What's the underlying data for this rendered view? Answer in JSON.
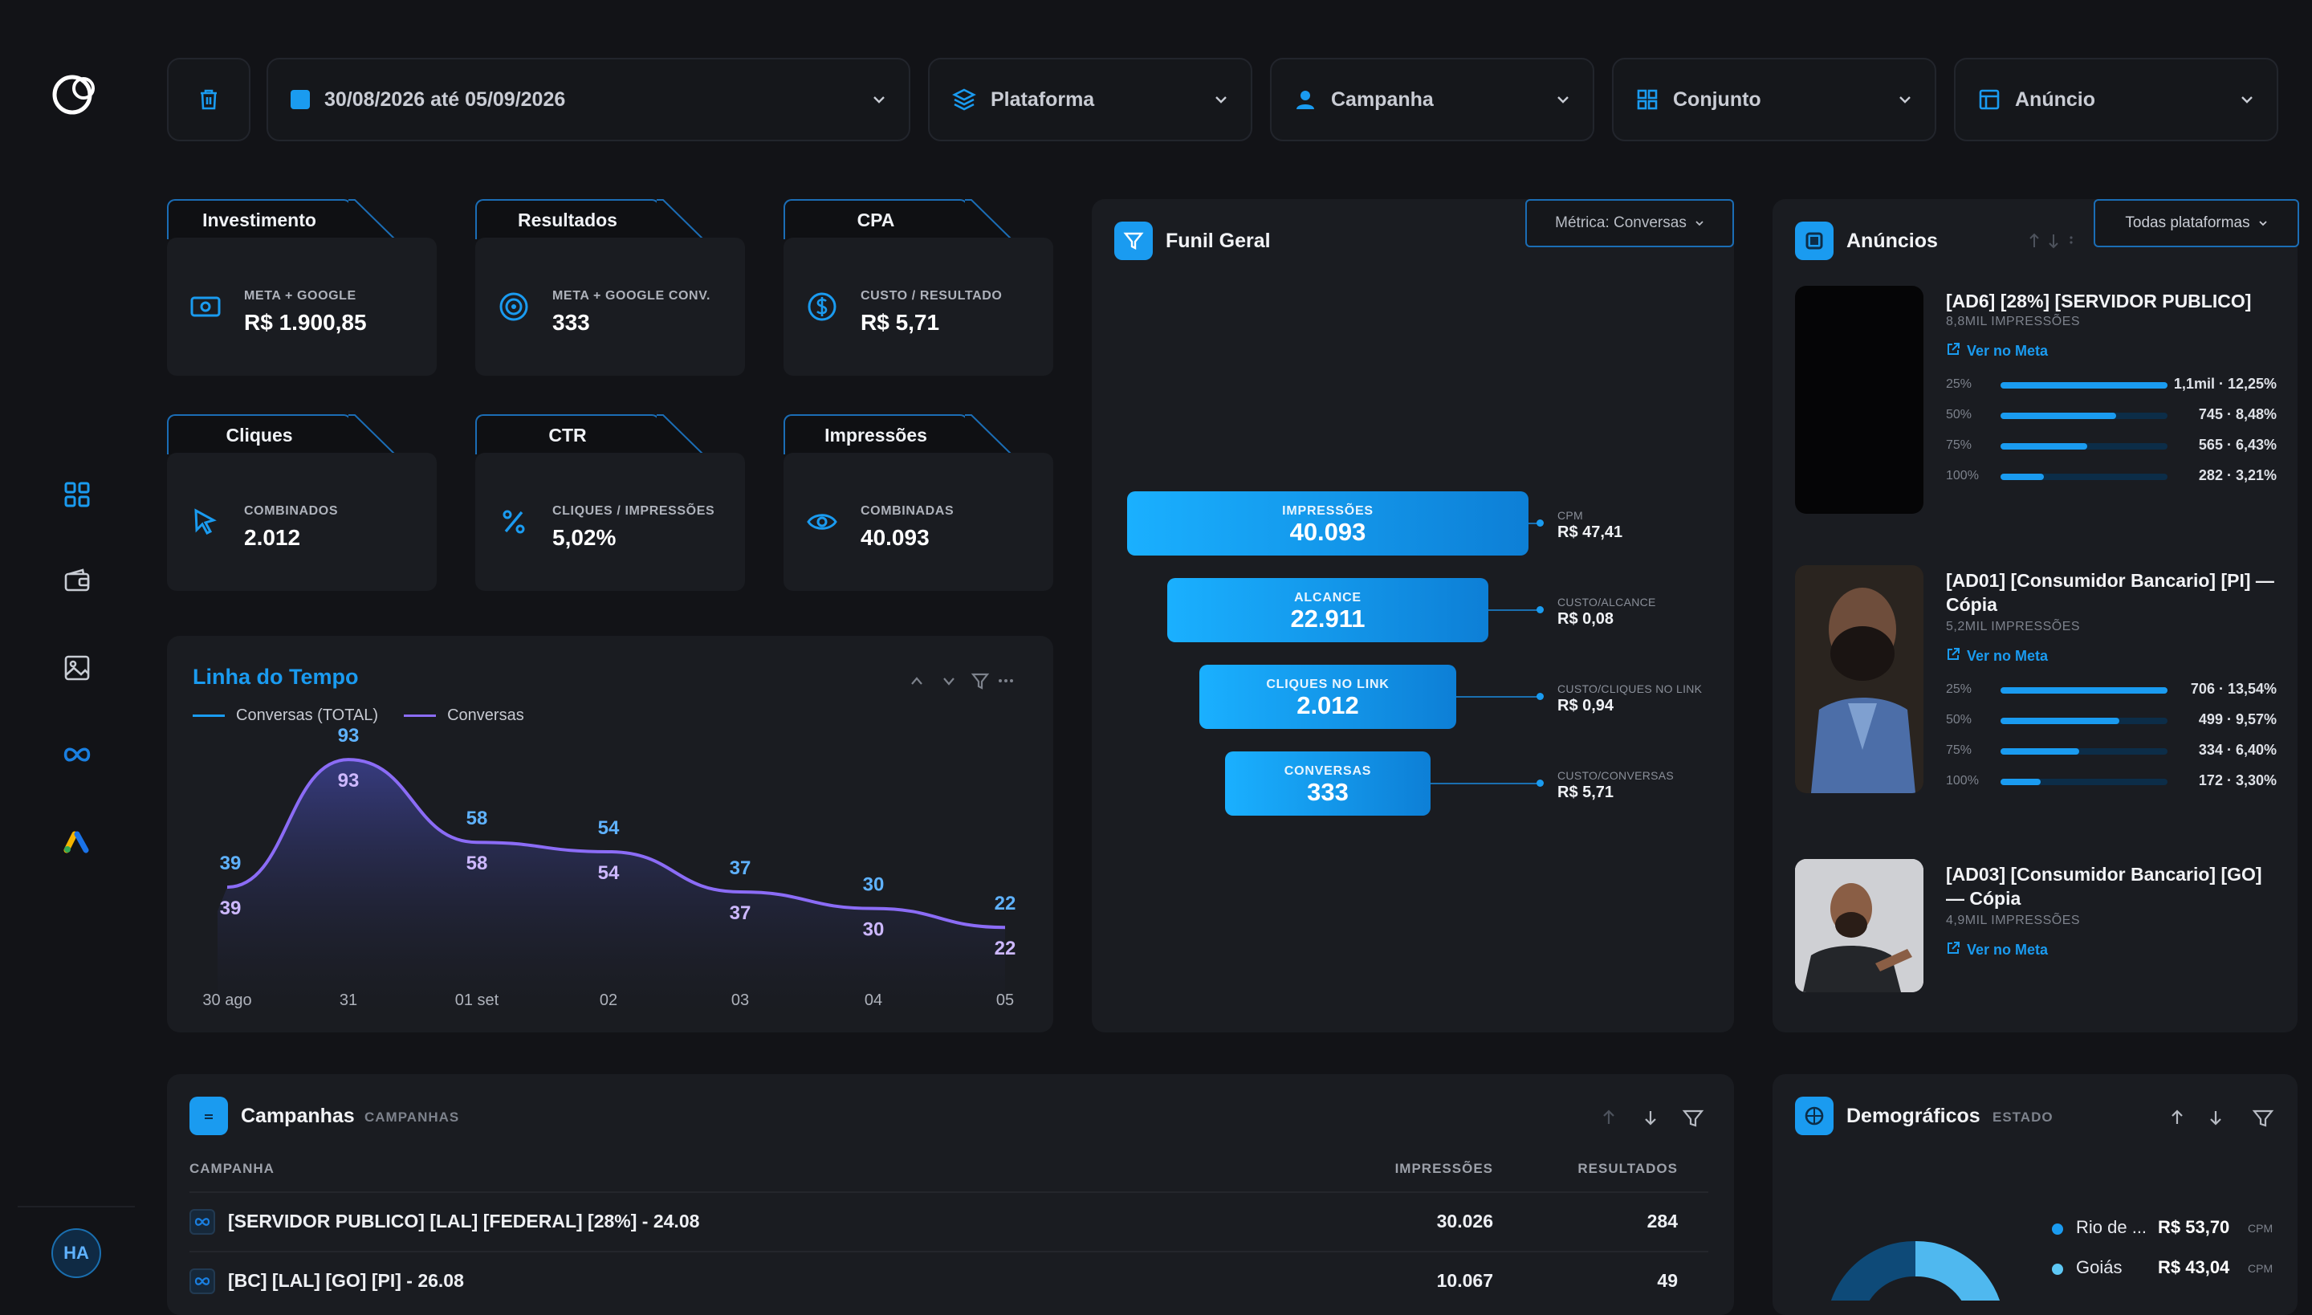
{
  "filters": {
    "date_range": "30/08/2026 até 05/09/2026",
    "platform": "Plataforma",
    "campaign": "Campanha",
    "set": "Conjunto",
    "ad": "Anúncio"
  },
  "kpis": [
    {
      "title": "Investimento",
      "sub": "META + GOOGLE",
      "value": "R$ 1.900,85",
      "icon": "money-icon"
    },
    {
      "title": "Resultados",
      "sub": "META + GOOGLE CONV.",
      "value": "333",
      "icon": "target-icon"
    },
    {
      "title": "CPA",
      "sub": "CUSTO / RESULTADO",
      "value": "R$ 5,71",
      "icon": "dollar-circle-icon"
    },
    {
      "title": "Cliques",
      "sub": "COMBINADOS",
      "value": "2.012",
      "icon": "cursor-icon"
    },
    {
      "title": "CTR",
      "sub": "CLIQUES / IMPRESSÕES",
      "value": "5,02%",
      "icon": "percent-icon"
    },
    {
      "title": "Impressões",
      "sub": "COMBINADAS",
      "value": "40.093",
      "icon": "eye-icon"
    }
  ],
  "timeline": {
    "title": "Linha do Tempo",
    "legend": [
      "Conversas (TOTAL)",
      "Conversas"
    ],
    "colors": {
      "total": "#1a9bf0",
      "series": "#8b6cf6"
    }
  },
  "chart_data": {
    "type": "area",
    "categories": [
      "30 ago",
      "31",
      "01 set",
      "02",
      "03",
      "04",
      "05"
    ],
    "series": [
      {
        "name": "Conversas (TOTAL)",
        "values": [
          39,
          93,
          58,
          54,
          37,
          30,
          22
        ]
      },
      {
        "name": "Conversas",
        "values": [
          39,
          93,
          58,
          54,
          37,
          30,
          22
        ]
      }
    ]
  },
  "funnel": {
    "title": "Funil Geral",
    "metric_select": "Métrica: Conversas",
    "stages": [
      {
        "label": "IMPRESSÕES",
        "value": "40.093",
        "cost_label": "CPM",
        "cost": "R$ 47,41"
      },
      {
        "label": "ALCANCE",
        "value": "22.911",
        "cost_label": "CUSTO/ALCANCE",
        "cost": "R$ 0,08"
      },
      {
        "label": "CLIQUES NO LINK",
        "value": "2.012",
        "cost_label": "CUSTO/CLIQUES NO LINK",
        "cost": "R$ 0,94"
      },
      {
        "label": "CONVERSAS",
        "value": "333",
        "cost_label": "CUSTO/CONVERSAS",
        "cost": "R$ 5,71"
      }
    ]
  },
  "ads": {
    "title": "Anúncios",
    "platform_select": "Todas plataformas",
    "link_label": "Ver no Meta",
    "items": [
      {
        "title": "[AD6] [28%] [SERVIDOR PUBLICO]",
        "impressions": "8,8MIL IMPRESSÕES",
        "retention": [
          {
            "pct": "25%",
            "fill": 1.0,
            "value": "1,1mil · 12,25%"
          },
          {
            "pct": "50%",
            "fill": 0.69,
            "value": "745 · 8,48%"
          },
          {
            "pct": "75%",
            "fill": 0.52,
            "value": "565 · 6,43%"
          },
          {
            "pct": "100%",
            "fill": 0.26,
            "value": "282 · 3,21%"
          }
        ]
      },
      {
        "title": "[AD01] [Consumidor Bancario] [PI] — Cópia",
        "impressions": "5,2MIL IMPRESSÕES",
        "retention": [
          {
            "pct": "25%",
            "fill": 1.0,
            "value": "706 · 13,54%"
          },
          {
            "pct": "50%",
            "fill": 0.71,
            "value": "499 · 9,57%"
          },
          {
            "pct": "75%",
            "fill": 0.47,
            "value": "334 · 6,40%"
          },
          {
            "pct": "100%",
            "fill": 0.24,
            "value": "172 · 3,30%"
          }
        ]
      },
      {
        "title": "[AD03] [Consumidor Bancario] [GO] — Cópia",
        "impressions": "4,9MIL IMPRESSÕES",
        "retention": []
      }
    ]
  },
  "campaigns": {
    "title": "Campanhas",
    "subtitle": "CAMPANHAS",
    "headers": {
      "name": "CAMPANHA",
      "impressions": "IMPRESSÕES",
      "results": "RESULTADOS"
    },
    "rows": [
      {
        "name": "[SERVIDOR PUBLICO] [LAL] [FEDERAL] [28%] - 24.08",
        "impressions": "30.026",
        "results": "284"
      },
      {
        "name": "[BC] [LAL] [GO] [PI] - 26.08",
        "impressions": "10.067",
        "results": "49"
      }
    ]
  },
  "demographics": {
    "title": "Demográficos",
    "subtitle": "ESTADO",
    "items": [
      {
        "name": "Rio de ...",
        "value": "R$ 53,70",
        "unit": "CPM",
        "color": "#1a9bf0"
      },
      {
        "name": "Goiás",
        "value": "R$ 43,04",
        "unit": "CPM",
        "color": "#5ec8f5"
      }
    ]
  },
  "user": {
    "initials": "HA"
  }
}
